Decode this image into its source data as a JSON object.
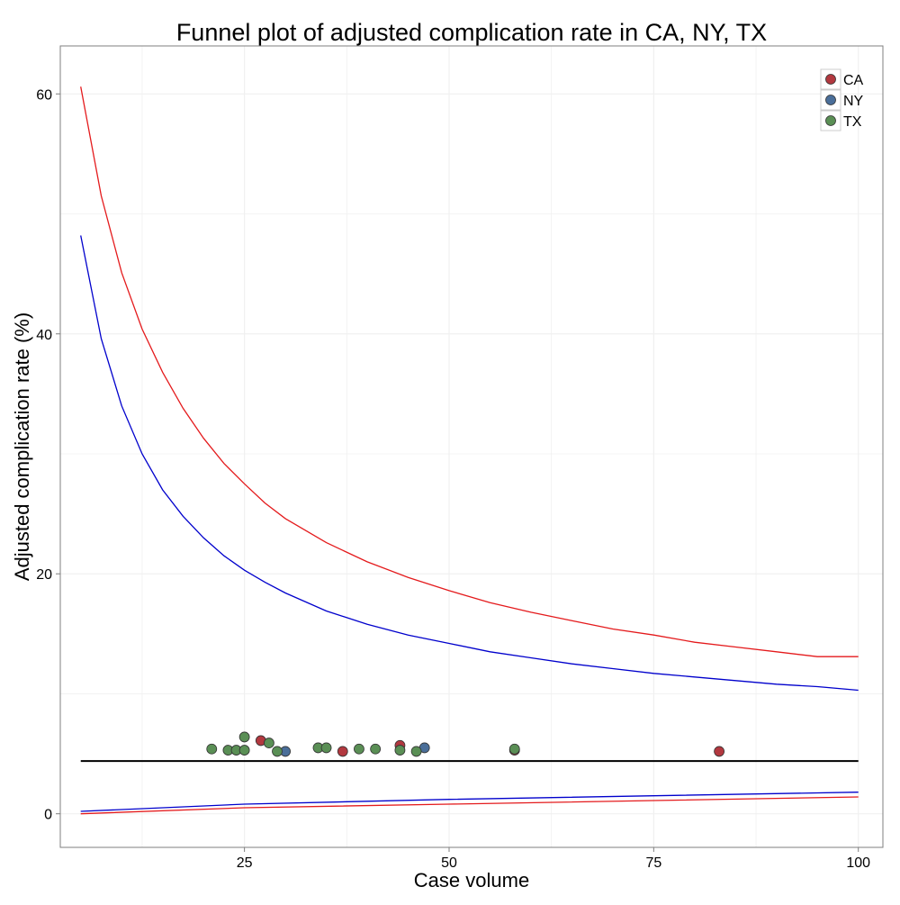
{
  "chart_data": {
    "type": "scatter",
    "title": "Funnel plot of adjusted complication rate in CA, NY, TX",
    "xlabel": "Case volume",
    "ylabel": "Adjusted complication rate (%)",
    "xlim": [
      2.5,
      103
    ],
    "ylim": [
      -2.8,
      64
    ],
    "x_ticks": [
      25,
      50,
      75,
      100
    ],
    "y_ticks": [
      0,
      20,
      40,
      60
    ],
    "grid": true,
    "legend_position": "top-right",
    "mean_line": {
      "y": 4.4,
      "x_range": [
        5,
        100
      ],
      "color": "#000000"
    },
    "control_limits": [
      {
        "level": "outer",
        "color": "#e41a1c",
        "upper": {
          "x": [
            5,
            7.5,
            10,
            12.5,
            15,
            17.5,
            20,
            22.5,
            25,
            27.5,
            30,
            35,
            40,
            45,
            50,
            55,
            60,
            65,
            70,
            75,
            80,
            85,
            90,
            95,
            100
          ],
          "y": [
            60.6,
            51.5,
            45.1,
            40.4,
            36.8,
            33.8,
            31.3,
            29.2,
            27.5,
            25.9,
            24.6,
            22.6,
            21.0,
            19.7,
            18.6,
            17.6,
            16.8,
            16.1,
            15.4,
            14.9,
            14.3,
            13.9,
            13.5,
            13.1,
            13.1
          ]
        },
        "lower": {
          "x": [
            5,
            25,
            50,
            75,
            100
          ],
          "y": [
            0.0,
            0.5,
            0.8,
            1.1,
            1.4
          ]
        }
      },
      {
        "level": "inner",
        "color": "#0000cc",
        "upper": {
          "x": [
            5,
            7.5,
            10,
            12.5,
            15,
            17.5,
            20,
            22.5,
            25,
            27.5,
            30,
            35,
            40,
            45,
            50,
            55,
            60,
            65,
            70,
            75,
            80,
            85,
            90,
            95,
            100
          ],
          "y": [
            48.2,
            39.6,
            34.0,
            30.0,
            27.0,
            24.8,
            23.0,
            21.5,
            20.3,
            19.3,
            18.4,
            16.9,
            15.8,
            14.9,
            14.2,
            13.5,
            13.0,
            12.5,
            12.1,
            11.7,
            11.4,
            11.1,
            10.8,
            10.6,
            10.3
          ]
        },
        "lower": {
          "x": [
            5,
            25,
            50,
            75,
            100
          ],
          "y": [
            0.2,
            0.8,
            1.2,
            1.5,
            1.8
          ]
        }
      }
    ],
    "series": [
      {
        "name": "CA",
        "color": "#b2383f",
        "points": [
          [
            27,
            6.1
          ],
          [
            37,
            5.2
          ],
          [
            44,
            5.7
          ],
          [
            58,
            5.3
          ],
          [
            83,
            5.2
          ]
        ]
      },
      {
        "name": "NY",
        "color": "#4a6e99",
        "points": [
          [
            30,
            5.2
          ],
          [
            47,
            5.5
          ]
        ]
      },
      {
        "name": "TX",
        "color": "#5a8f55",
        "points": [
          [
            21,
            5.4
          ],
          [
            23,
            5.3
          ],
          [
            24,
            5.3
          ],
          [
            25,
            5.3
          ],
          [
            25,
            6.4
          ],
          [
            28,
            5.9
          ],
          [
            29,
            5.2
          ],
          [
            34,
            5.5
          ],
          [
            35,
            5.5
          ],
          [
            39,
            5.4
          ],
          [
            41,
            5.4
          ],
          [
            44,
            5.3
          ],
          [
            46,
            5.2
          ],
          [
            58,
            5.4
          ]
        ]
      }
    ]
  }
}
